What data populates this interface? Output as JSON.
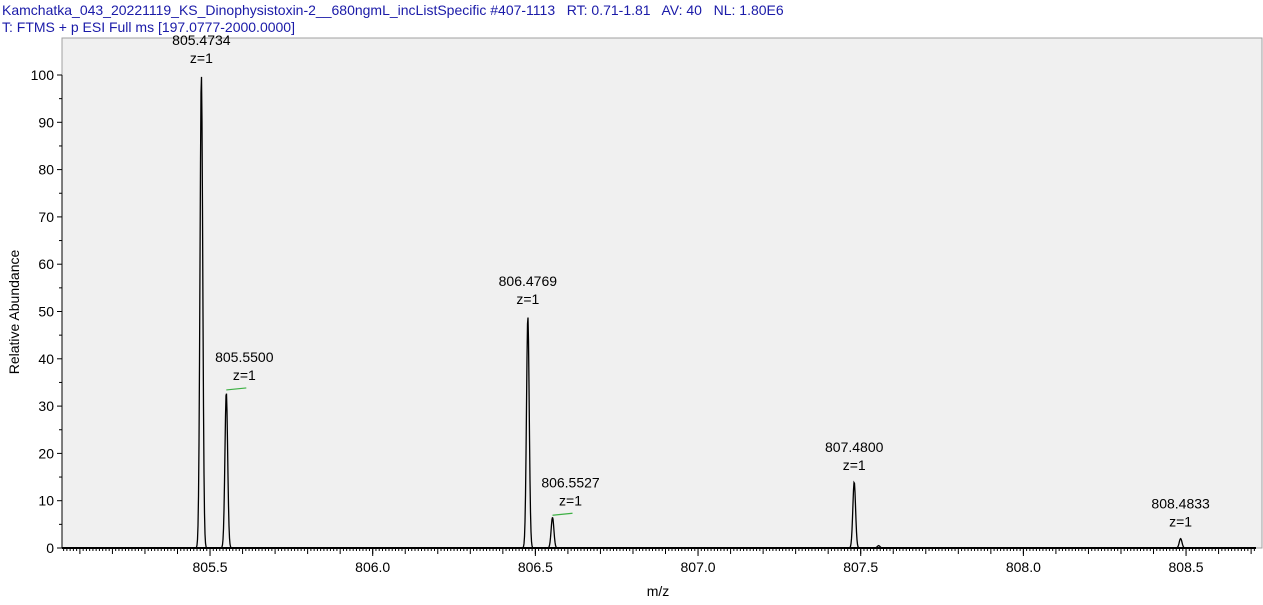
{
  "header": {
    "line1": "Kamchatka_043_20221119_KS_Dinophysistoxin-2__680ngmL_incListSpecific #407-1113   RT: 0.71-1.81   AV: 40   NL: 1.80E6",
    "line2": "T: FTMS + p ESI Full ms [197.0777-2000.0000]"
  },
  "chart_data": {
    "type": "line",
    "xlabel": "m/z",
    "ylabel": "Relative Abundance",
    "xlim": [
      805.045,
      808.715
    ],
    "ylim": [
      0,
      100
    ],
    "xticks": [
      "805.5",
      "806.0",
      "806.5",
      "807.0",
      "807.5",
      "808.0",
      "808.5"
    ],
    "yticks": [
      "0",
      "10",
      "20",
      "30",
      "40",
      "50",
      "60",
      "70",
      "80",
      "90",
      "100"
    ],
    "grid": false,
    "colors": {
      "background": "#f0f0f0",
      "trace": "#000000",
      "header": "#1a1aa8",
      "charge_marker": "#3cb043"
    },
    "peaks": [
      {
        "mz": 805.4734,
        "intensity": 100,
        "label": "805.4734",
        "charge": "z=1"
      },
      {
        "mz": 805.55,
        "intensity": 33,
        "label": "805.5500",
        "charge": "z=1",
        "marker": true
      },
      {
        "mz": 806.4769,
        "intensity": 49,
        "label": "806.4769",
        "charge": "z=1"
      },
      {
        "mz": 806.5527,
        "intensity": 6.5,
        "label": "806.5527",
        "charge": "z=1",
        "marker": true
      },
      {
        "mz": 807.48,
        "intensity": 14,
        "label": "807.4800",
        "charge": "z=1"
      },
      {
        "mz": 807.555,
        "intensity": 0.5
      },
      {
        "mz": 808.4833,
        "intensity": 2,
        "label": "808.4833",
        "charge": "z=1"
      }
    ]
  }
}
